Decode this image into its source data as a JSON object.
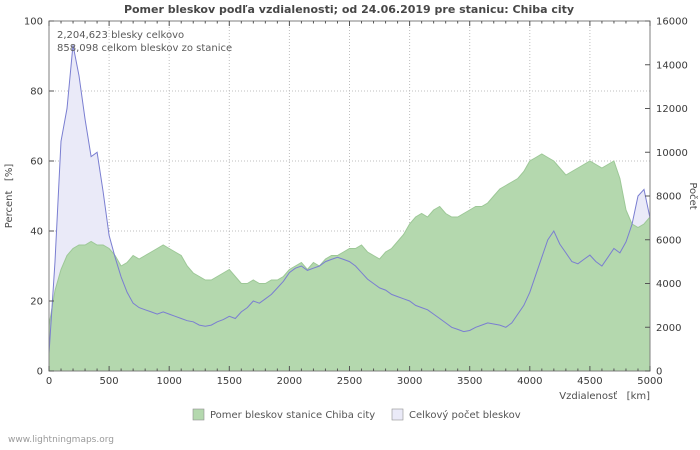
{
  "page": {
    "watermark": "www.lightningmaps.org"
  },
  "chart_data": {
    "type": "area",
    "title": "Pomer bleskov podľa vzdialenosti; od 24.06.2019 pre stanicu: Chiba city",
    "annotations": [
      "2,204,623 blesky celkovo",
      "858,098 celkom bleskov zo stanice"
    ],
    "xlabel": "Vzdialenosť   [km]",
    "ylabel_left": "Percent   [%]",
    "ylabel_right": "Počet",
    "xlim": [
      0,
      5000
    ],
    "ylim_left": [
      0,
      100
    ],
    "ylim_right": [
      0,
      16000
    ],
    "xticks": [
      0,
      500,
      1000,
      1500,
      2000,
      2500,
      3000,
      3500,
      4000,
      4500,
      5000
    ],
    "x_minor_step": 100,
    "yticks_left": [
      0,
      20,
      40,
      60,
      80,
      100
    ],
    "yticks_right": [
      0,
      2000,
      4000,
      6000,
      8000,
      10000,
      12000,
      14000,
      16000
    ],
    "grid": "dotted",
    "legend_position": "bottom",
    "x": [
      0,
      50,
      100,
      150,
      200,
      250,
      300,
      350,
      400,
      450,
      500,
      550,
      600,
      650,
      700,
      750,
      800,
      850,
      900,
      950,
      1000,
      1050,
      1100,
      1150,
      1200,
      1250,
      1300,
      1350,
      1400,
      1450,
      1500,
      1550,
      1600,
      1650,
      1700,
      1750,
      1800,
      1850,
      1900,
      1950,
      2000,
      2050,
      2100,
      2150,
      2200,
      2250,
      2300,
      2350,
      2400,
      2450,
      2500,
      2550,
      2600,
      2650,
      2700,
      2750,
      2800,
      2850,
      2900,
      2950,
      3000,
      3050,
      3100,
      3150,
      3200,
      3250,
      3300,
      3350,
      3400,
      3450,
      3500,
      3550,
      3600,
      3650,
      3700,
      3750,
      3800,
      3850,
      3900,
      3950,
      4000,
      4050,
      4100,
      4150,
      4200,
      4250,
      4300,
      4350,
      4400,
      4450,
      4500,
      4550,
      4600,
      4650,
      4700,
      4750,
      4800,
      4850,
      4900,
      4950,
      5000
    ],
    "series": [
      {
        "name": "Pomer bleskov stanice Chiba city",
        "axis": "left",
        "unit": "percent",
        "fill_color": "#b4d8ae",
        "edge_color": "#9dc897",
        "values": [
          13,
          23,
          29,
          33,
          35,
          36,
          36,
          37,
          36,
          36,
          35,
          33,
          30,
          31,
          33,
          32,
          33,
          34,
          35,
          36,
          35,
          34,
          33,
          30,
          28,
          27,
          26,
          26,
          27,
          28,
          29,
          27,
          25,
          25,
          26,
          25,
          25,
          26,
          26,
          27,
          29,
          30,
          31,
          29,
          31,
          30,
          32,
          33,
          33,
          34,
          35,
          35,
          36,
          34,
          33,
          32,
          34,
          35,
          37,
          39,
          42,
          44,
          45,
          44,
          46,
          47,
          45,
          44,
          44,
          45,
          46,
          47,
          47,
          48,
          50,
          52,
          53,
          54,
          55,
          57,
          60,
          61,
          62,
          61,
          60,
          58,
          56,
          57,
          58,
          59,
          60,
          59,
          58,
          59,
          60,
          55,
          46,
          42,
          41,
          42,
          44
        ]
      },
      {
        "name": "Celkový počet bleskov",
        "axis": "right",
        "unit": "count",
        "fill_color": "#eaeaf8",
        "line_color": "#7a7ed1",
        "values": [
          800,
          5000,
          10500,
          12000,
          14900,
          13500,
          11500,
          9800,
          10000,
          8200,
          6200,
          5200,
          4300,
          3600,
          3100,
          2900,
          2800,
          2700,
          2600,
          2700,
          2600,
          2500,
          2400,
          2300,
          2250,
          2100,
          2050,
          2100,
          2250,
          2350,
          2500,
          2400,
          2700,
          2900,
          3200,
          3100,
          3300,
          3500,
          3800,
          4100,
          4500,
          4700,
          4800,
          4600,
          4700,
          4800,
          5000,
          5100,
          5200,
          5100,
          5000,
          4800,
          4500,
          4200,
          4000,
          3800,
          3700,
          3500,
          3400,
          3300,
          3200,
          3000,
          2900,
          2800,
          2600,
          2400,
          2200,
          2000,
          1900,
          1800,
          1850,
          2000,
          2100,
          2200,
          2150,
          2100,
          2000,
          2200,
          2600,
          3000,
          3600,
          4400,
          5200,
          6000,
          6400,
          5800,
          5400,
          5000,
          4900,
          5100,
          5300,
          5000,
          4800,
          5200,
          5600,
          5400,
          5900,
          6700,
          8000,
          8300,
          7000
        ]
      }
    ]
  }
}
